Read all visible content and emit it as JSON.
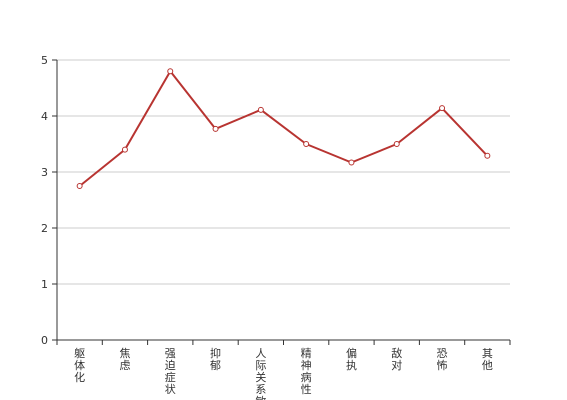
{
  "chart_data": {
    "type": "line",
    "title": "",
    "xlabel": "",
    "ylabel": "",
    "categories": [
      "躯体化",
      "焦虑",
      "强迫症状",
      "抑郁",
      "人际关系敏感",
      "精神病性",
      "偏执",
      "敌对",
      "恐怖",
      "其他"
    ],
    "series": [
      {
        "values": [
          2.75,
          3.4,
          4.8,
          3.77,
          4.11,
          3.5,
          3.17,
          3.5,
          4.14,
          3.29
        ]
      }
    ],
    "ylim": [
      0,
      5
    ],
    "yticks": [
      0,
      1,
      2,
      3,
      4,
      5
    ],
    "grid": true,
    "colors": {
      "line": "#b83431",
      "grid": "#cccccc",
      "axis": "#333333",
      "marker_fill": "#ffffff"
    }
  }
}
